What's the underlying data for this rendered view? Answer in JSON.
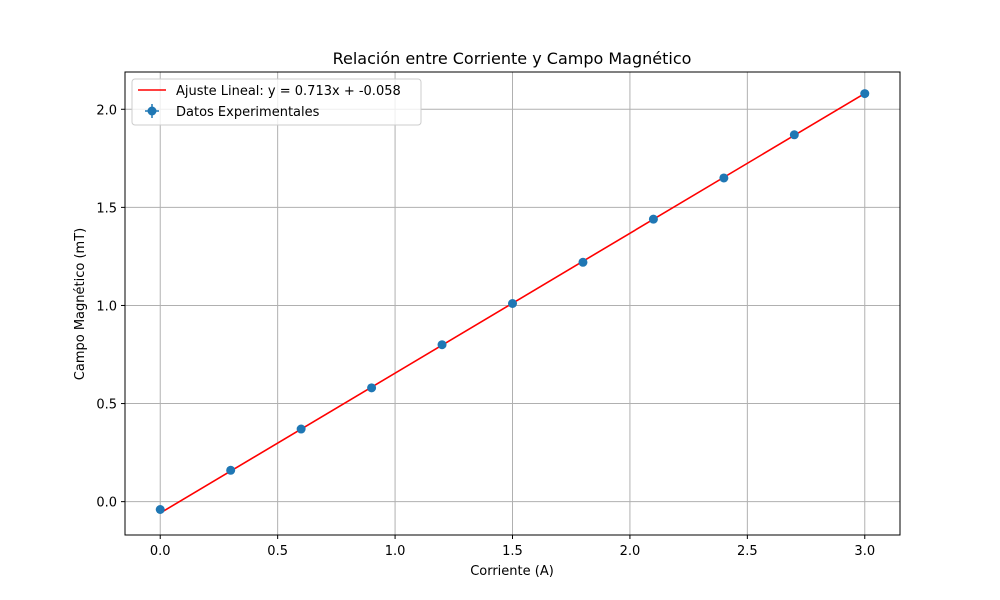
{
  "chart_data": {
    "type": "scatter",
    "title": "Relación entre Corriente y Campo Magnético",
    "xlabel": "Corriente (A)",
    "ylabel": "Campo Magnético (mT)",
    "xlim": [
      -0.15,
      3.15
    ],
    "ylim": [
      -0.17,
      2.19
    ],
    "xticks": [
      0.0,
      0.5,
      1.0,
      1.5,
      2.0,
      2.5,
      3.0
    ],
    "xtick_labels": [
      "0.0",
      "0.5",
      "1.0",
      "1.5",
      "2.0",
      "2.5",
      "3.0"
    ],
    "yticks": [
      0.0,
      0.5,
      1.0,
      1.5,
      2.0
    ],
    "ytick_labels": [
      "0.0",
      "0.5",
      "1.0",
      "1.5",
      "2.0"
    ],
    "grid": true,
    "legend_position": "top-left",
    "series": [
      {
        "name": "Datos Experimentales",
        "kind": "scatter_errorbar",
        "color": "#1f77b4",
        "x": [
          0.0,
          0.3,
          0.6,
          0.9,
          1.2,
          1.5,
          1.8,
          2.1,
          2.4,
          2.7,
          3.0
        ],
        "y": [
          -0.04,
          0.16,
          0.37,
          0.58,
          0.8,
          1.01,
          1.22,
          1.44,
          1.65,
          1.87,
          2.08
        ]
      },
      {
        "name": "Ajuste Lineal: y = 0.713x + -0.058",
        "kind": "line",
        "color": "#ff0000",
        "slope": 0.713,
        "intercept": -0.058,
        "x": [
          0.0,
          3.0
        ]
      }
    ]
  }
}
